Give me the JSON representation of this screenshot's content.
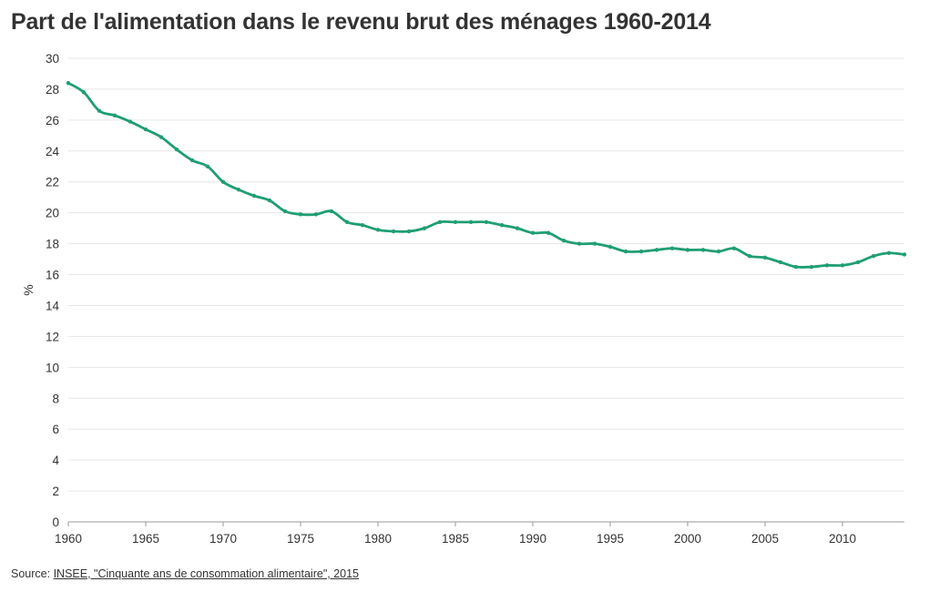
{
  "chart_data": {
    "type": "line",
    "title": "Part de l'alimentation dans le revenu brut des ménages 1960-2014",
    "xlabel": "",
    "ylabel": "%",
    "xlim": [
      1960,
      2014
    ],
    "ylim": [
      0,
      30
    ],
    "x_ticks": [
      1960,
      1965,
      1970,
      1975,
      1980,
      1985,
      1990,
      1995,
      2000,
      2005,
      2010
    ],
    "y_ticks": [
      0,
      2,
      4,
      6,
      8,
      10,
      12,
      14,
      16,
      18,
      20,
      22,
      24,
      26,
      28,
      30
    ],
    "grid": true,
    "legend": "none",
    "color": "#1f9e74",
    "series": [
      {
        "x": [
          1960,
          1961,
          1962,
          1963,
          1964,
          1965,
          1966,
          1967,
          1968,
          1969,
          1970,
          1971,
          1972,
          1973,
          1974,
          1975,
          1976,
          1977,
          1978,
          1979,
          1980,
          1981,
          1982,
          1983,
          1984,
          1985,
          1986,
          1987,
          1988,
          1989,
          1990,
          1991,
          1992,
          1993,
          1994,
          1995,
          1996,
          1997,
          1998,
          1999,
          2000,
          2001,
          2002,
          2003,
          2004,
          2005,
          2006,
          2007,
          2008,
          2009,
          2010,
          2011,
          2012,
          2013,
          2014
        ],
        "values": [
          28.4,
          27.8,
          26.6,
          26.3,
          25.9,
          25.4,
          24.9,
          24.1,
          23.4,
          23.0,
          22.0,
          21.5,
          21.1,
          20.8,
          20.1,
          19.9,
          19.9,
          20.1,
          19.4,
          19.2,
          18.9,
          18.8,
          18.8,
          19.0,
          19.4,
          19.4,
          19.4,
          19.4,
          19.2,
          19.0,
          18.7,
          18.7,
          18.2,
          18.0,
          18.0,
          17.8,
          17.5,
          17.5,
          17.6,
          17.7,
          17.6,
          17.6,
          17.5,
          17.7,
          17.2,
          17.1,
          16.8,
          16.5,
          16.5,
          16.6,
          16.6,
          16.8,
          17.2,
          17.4,
          17.3
        ]
      }
    ]
  },
  "source": {
    "prefix": "Source: ",
    "link_text": "INSEE, \"Cinquante ans de consommation alimentaire\", 2015"
  }
}
